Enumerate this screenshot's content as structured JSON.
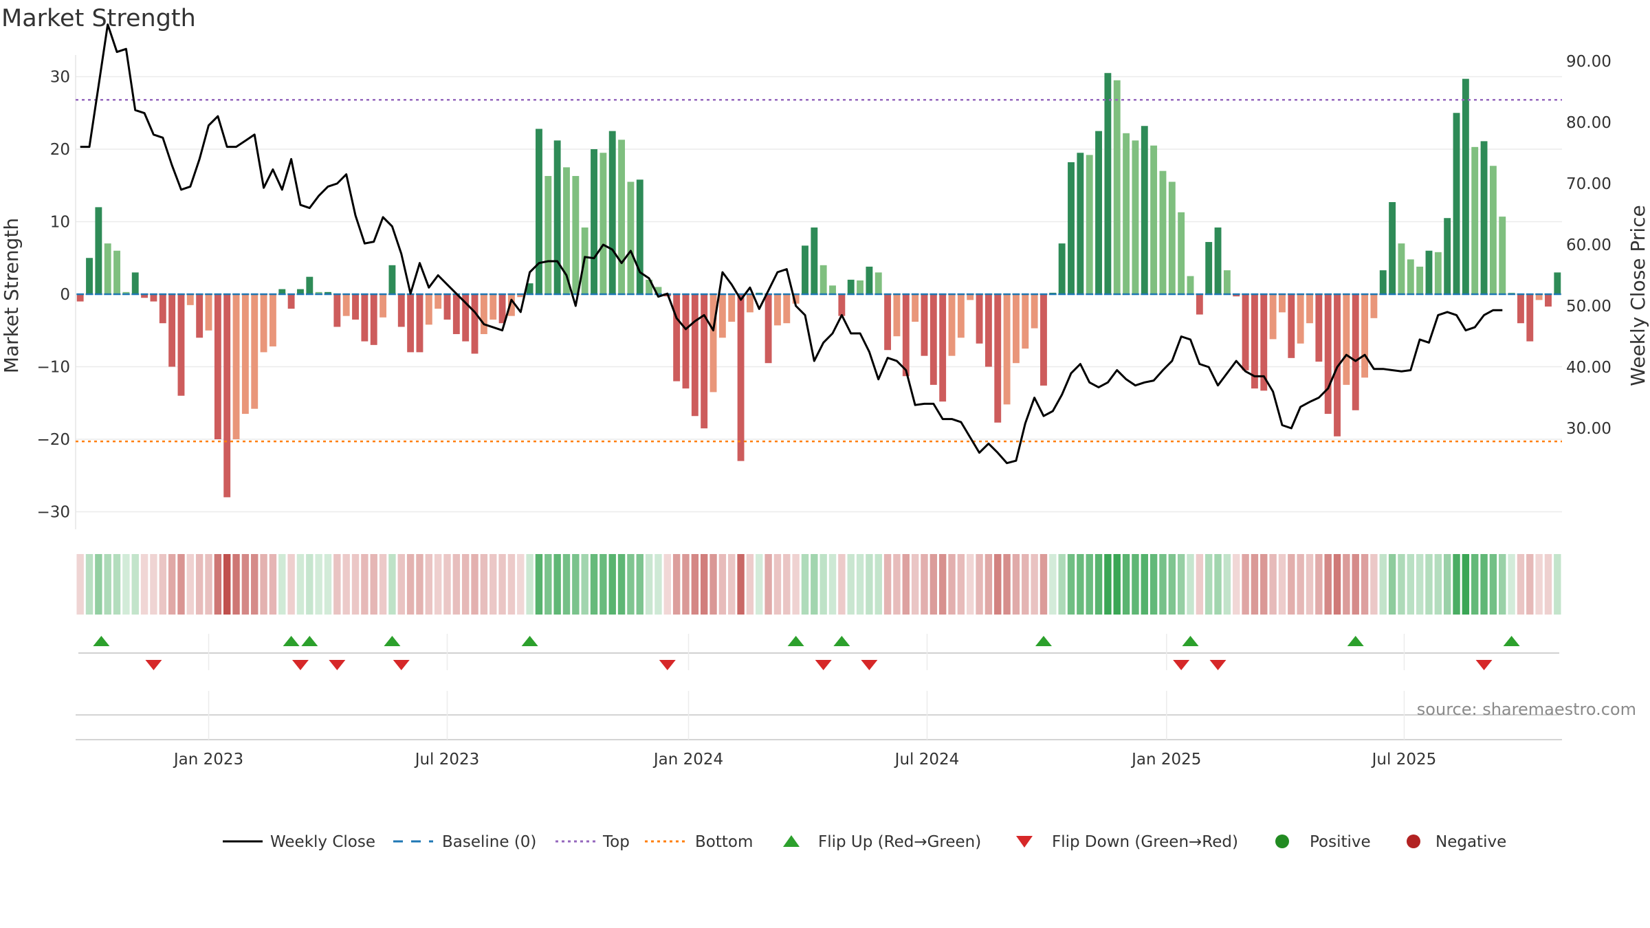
{
  "title": "Market Strength",
  "source": "source: sharemaestro.com",
  "colors": {
    "strong_green": "#2e8b57",
    "light_green": "#7fbf7f",
    "strong_red": "#cd5c5c",
    "light_red": "#e9967a",
    "close_line": "#000000",
    "baseline": "#1f77b4",
    "top": "#9467bd",
    "bottom": "#ff7f0e",
    "flip_up": "#2ca02c",
    "flip_down": "#d62728",
    "positive": "#228b22",
    "negative": "#b22222"
  },
  "chart_data": {
    "type": "bar",
    "title": "Market Strength",
    "ylabel": "Market Strength",
    "y2label": "Weekly Close Price",
    "ylim": [
      -32,
      32
    ],
    "y2lim": [
      23.5,
      100
    ],
    "y_ticks": [
      "30",
      "20",
      "10",
      "0",
      "−10",
      "−20",
      "−30"
    ],
    "y_tick_values": [
      30,
      20,
      10,
      0,
      -10,
      -20,
      -30
    ],
    "y2_ticks": [
      "90.00",
      "80.00",
      "70.00",
      "60.00",
      "50.00",
      "40.00",
      "30.00"
    ],
    "y2_tick_values": [
      90,
      80,
      70,
      60,
      50,
      40,
      30
    ],
    "x_ticks": [
      "Jan 2023",
      "Jul 2023",
      "Jan 2024",
      "Jul 2024",
      "Jan 2025",
      "Jul 2025"
    ],
    "x_tick_weeks": [
      14,
      40,
      66.3,
      92.3,
      118.4,
      144.3
    ],
    "top_level": 26.8,
    "bottom_level": -20.3,
    "strength": [
      -1,
      5,
      12,
      7,
      6,
      0.3,
      3,
      -0.5,
      -1,
      -4,
      -10,
      -14,
      -1.5,
      -6,
      -5,
      -20,
      -28,
      -20,
      -16.5,
      -15.8,
      -8,
      -7.2,
      0.7,
      -2,
      0.7,
      2.4,
      0.3,
      0.3,
      -4.5,
      -3,
      -3.5,
      -6.5,
      -7,
      -3.2,
      4,
      -4.5,
      -8,
      -8,
      -4.2,
      -2,
      -3.5,
      -5.5,
      -6.5,
      -8.2,
      -5.5,
      -3.5,
      -4,
      -3,
      -0.4,
      1.5,
      22.8,
      16.3,
      21.2,
      17.5,
      16.3,
      9.2,
      20,
      19.5,
      22.5,
      21.3,
      15.5,
      15.8,
      2,
      1,
      -0.3,
      -12,
      -13,
      -16.8,
      -18.5,
      -13.5,
      -6,
      -3.8,
      -23,
      -2.5,
      0.2,
      -9.5,
      -4.3,
      -4,
      -1.3,
      6.7,
      9.2,
      4,
      1.2,
      -3,
      2,
      1.9,
      3.8,
      3,
      -7.7,
      -5.8,
      -11.3,
      -3.8,
      -8.5,
      -12.5,
      -14.8,
      -8.5,
      -6,
      -0.8,
      -6.8,
      -10,
      -17.7,
      -15.2,
      -9.5,
      -7.5,
      -4.7,
      -12.6,
      0.2,
      7,
      18.2,
      19.5,
      19.2,
      22.5,
      30.5,
      29.5,
      22.2,
      21.2,
      23.2,
      20.5,
      17,
      15.5,
      11.3,
      2.5,
      -2.8,
      7.2,
      9.2,
      3.3,
      -0.3,
      -10.5,
      -13,
      -13.3,
      -6.2,
      -2.5,
      -8.8,
      -6.8,
      -4,
      -9.3,
      -16.5,
      -19.6,
      -12.5,
      -16,
      -11.5,
      -3.3,
      3.3,
      12.7,
      7,
      4.8,
      3.8,
      6,
      5.8,
      10.5,
      25,
      29.7,
      20.3,
      21.1,
      17.7,
      10.7,
      0.2,
      -4,
      -6.5,
      -0.8,
      -1.7,
      3
    ],
    "close": [
      76,
      76,
      86,
      96,
      91.5,
      92,
      82,
      81.5,
      78,
      77.5,
      73,
      69,
      69.5,
      74,
      79.5,
      81,
      76,
      76,
      77,
      78,
      69.3,
      72.3,
      69,
      74,
      66.5,
      66,
      68,
      69.5,
      70,
      71.5,
      64.8,
      60.2,
      60.5,
      64.5,
      63,
      58.5,
      52,
      57,
      53,
      55,
      53.5,
      52,
      50.5,
      49,
      47,
      46.5,
      46,
      51,
      49,
      55.5,
      57,
      57.3,
      57.3,
      55,
      50,
      58,
      57.8,
      60,
      59.2,
      57,
      59,
      55.5,
      54.5,
      51.5,
      52,
      48,
      46.2,
      47.5,
      48.5,
      46,
      55.5,
      53.5,
      51,
      53,
      49.5,
      52.5,
      55.5,
      56,
      50,
      48.5,
      41,
      44,
      45.5,
      48.5,
      45.5,
      45.5,
      42.5,
      38,
      41.5,
      41,
      39.5,
      33.8,
      34,
      34,
      31.5,
      31.5,
      31,
      28.5,
      26,
      27.5,
      26,
      24.3,
      24.7,
      30.8,
      35,
      32,
      32.8,
      35.5,
      39,
      40.5,
      37.5,
      36.7,
      37.5,
      39.5,
      38,
      37,
      37.5,
      37.8,
      39.5,
      41,
      45,
      44.5,
      40.5,
      40,
      37,
      39,
      41,
      39.3,
      38.5,
      38.5,
      36,
      30.5,
      30,
      33.5,
      34.3,
      35,
      36.5,
      40,
      42,
      41,
      42,
      39.7,
      39.7,
      39.5,
      39.3,
      39.5,
      44.5,
      44,
      48.5,
      49,
      48.5,
      46,
      46.5,
      48.5,
      49.3,
      49.3
    ],
    "flip_up_weeks": [
      2.3,
      23,
      25,
      34,
      49,
      78,
      83,
      105,
      121,
      139,
      156
    ],
    "flip_down_weeks": [
      8,
      24,
      28,
      35,
      64,
      81,
      86,
      120,
      124,
      153
    ]
  },
  "legend": [
    {
      "label": "Weekly Close",
      "kind": "line"
    },
    {
      "label": "Baseline (0)",
      "kind": "dash"
    },
    {
      "label": "Top",
      "kind": "dot-purple"
    },
    {
      "label": "Bottom",
      "kind": "dot-orange"
    },
    {
      "label": "Flip Up (Red→Green)",
      "kind": "tri-up"
    },
    {
      "label": "Flip Down (Green→Red)",
      "kind": "tri-down"
    },
    {
      "label": "Positive",
      "kind": "circle-pos"
    },
    {
      "label": "Negative",
      "kind": "circle-neg"
    }
  ]
}
